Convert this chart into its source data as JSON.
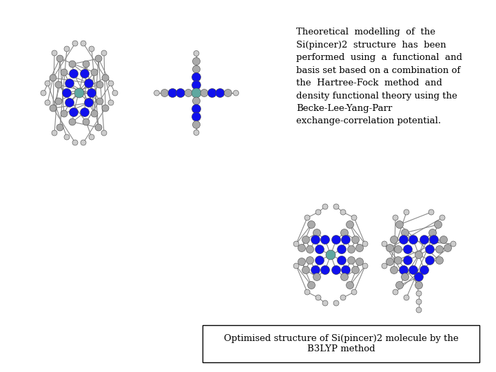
{
  "background_color": "#ffffff",
  "title": "Optimised structure of Si(pincer)2 molecule by the\nB3LYP method",
  "caption_text": "Theoretical  modelling  of  the\nSi(pincer)2  structure  has  been\nperformed  using  a  functional  and\nbasis set based on a combination of\nthe  Hartree-Fock  method  and\ndensity functional theory using the\nBecke-Lee-Yang-Parr\nexchange-correlation potential.",
  "caption_fontsize": 9.5,
  "title_fontsize": 9.5,
  "mol_colors": {
    "gray": "#aaaaaa",
    "lgray": "#cccccc",
    "blue": "#1010ee",
    "teal": "#5fa8a0",
    "white": "#f0f0f0"
  }
}
